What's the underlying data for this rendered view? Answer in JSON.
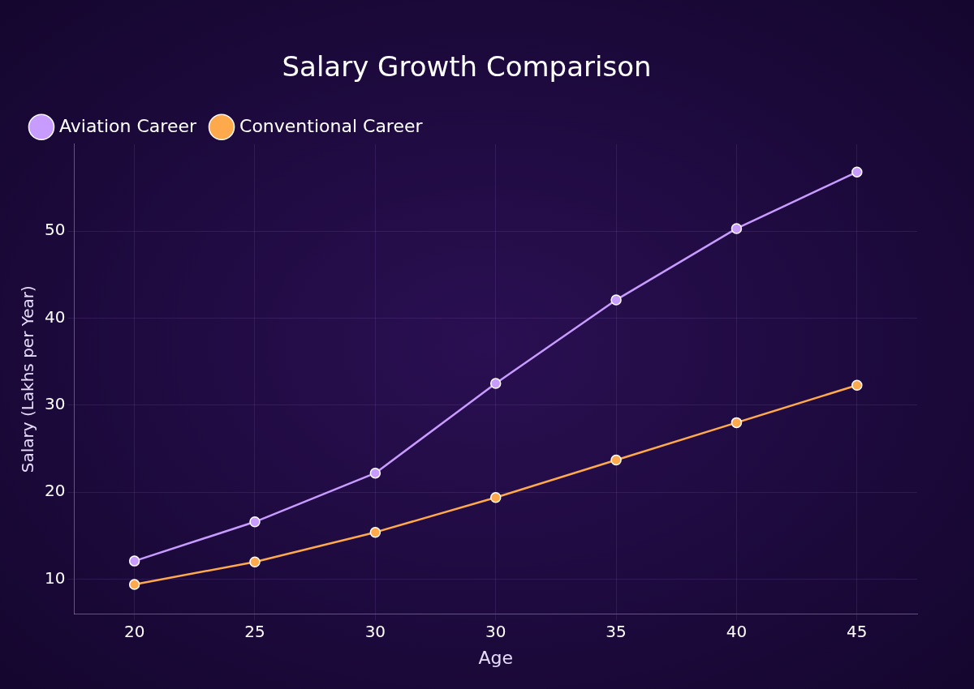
{
  "chart_data": {
    "type": "line",
    "title": "Salary Growth Comparison",
    "xlabel": "Age",
    "ylabel": "Salary (Lakhs per Year)",
    "categories": [
      "20",
      "25",
      "30",
      "30",
      "35",
      "40",
      "45"
    ],
    "series": [
      {
        "name": "Aviation Career",
        "color": "#c89bff",
        "values": [
          12.1,
          16.6,
          22.2,
          32.5,
          42.1,
          50.3,
          56.8
        ]
      },
      {
        "name": "Conventional Career",
        "color": "#ffa94d",
        "values": [
          9.4,
          12.0,
          15.4,
          19.4,
          23.7,
          28.0,
          32.3
        ]
      }
    ],
    "ylim": [
      6,
      60
    ],
    "yticks": [
      10,
      20,
      30,
      40,
      50
    ],
    "grid": true,
    "legend": "top left",
    "marker": "circle",
    "line_style": "solid"
  }
}
